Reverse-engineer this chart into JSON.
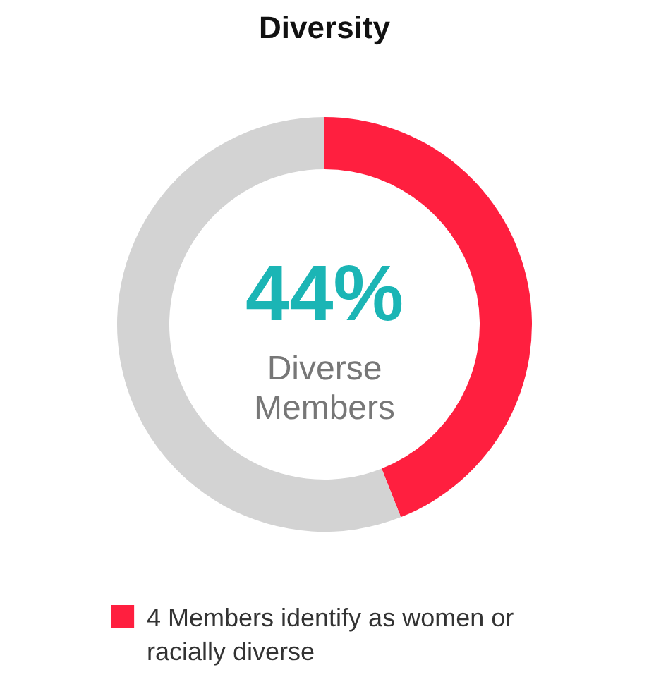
{
  "chart_data": {
    "type": "donut",
    "title": "Diversity",
    "categories": [
      "4 Members identify as women or racially diverse",
      null
    ],
    "values": [
      44,
      56
    ],
    "colors": [
      "#ff1f3f",
      "#d3d3d3"
    ],
    "annotations": [
      "44%",
      "Diverse Members"
    ],
    "legend": "bottom"
  }
}
